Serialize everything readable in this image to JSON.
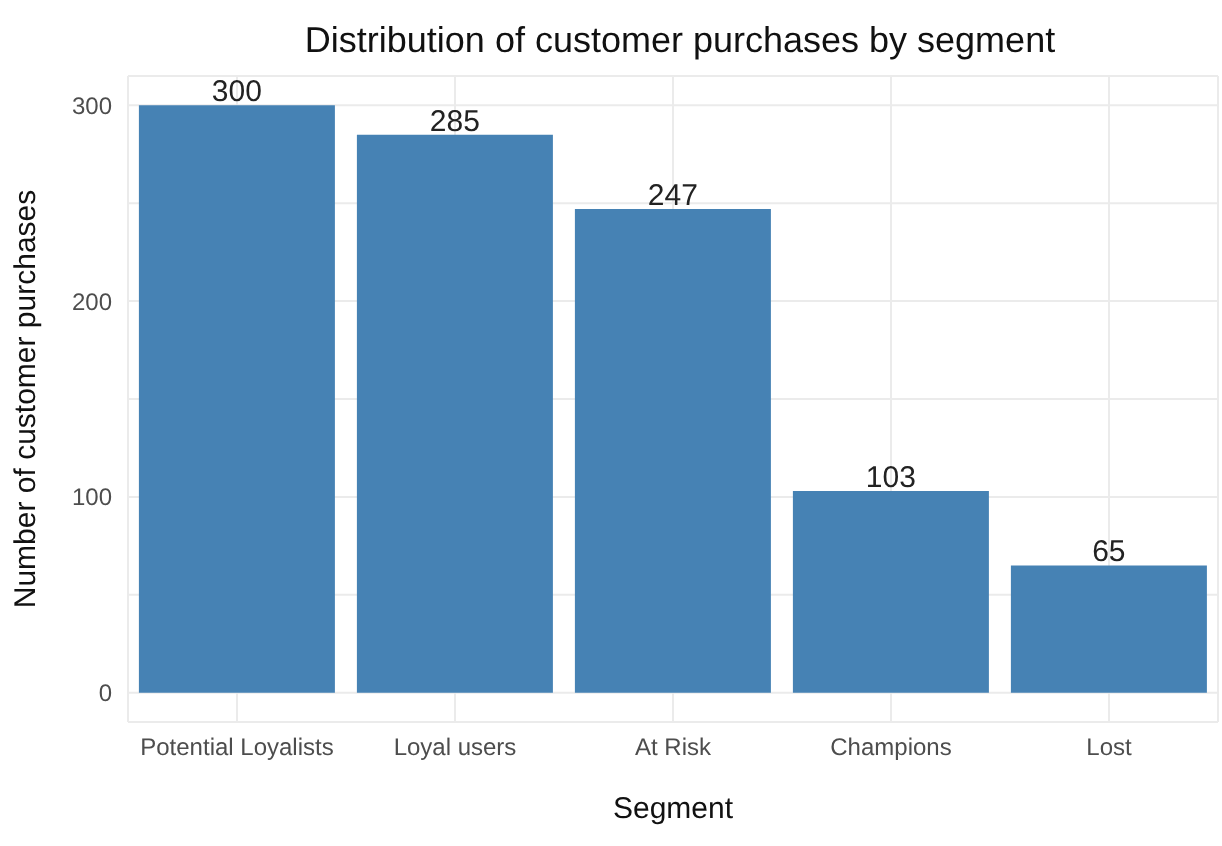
{
  "chart_data": {
    "type": "bar",
    "title": "Distribution of customer purchases by segment",
    "xlabel": "Segment",
    "ylabel": "Number of customer purchases",
    "categories": [
      "Potential Loyalists",
      "Loyal users",
      "At Risk",
      "Champions",
      "Lost"
    ],
    "values": [
      300,
      285,
      247,
      103,
      65
    ],
    "color": "#4682b4",
    "ylim": [
      -15,
      315
    ],
    "yticks": [
      0,
      {
        "value": 50,
        "label": null
      },
      100,
      {
        "value": 150,
        "label": null
      },
      200,
      {
        "value": 250,
        "label": null
      },
      300
    ],
    "grid": true,
    "data_labels": true
  }
}
